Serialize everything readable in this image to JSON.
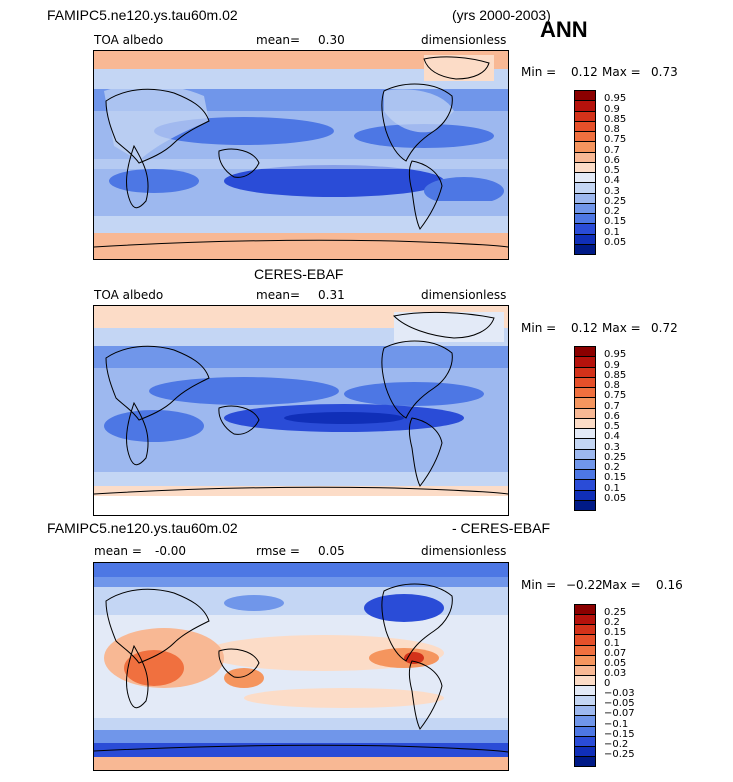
{
  "header": {
    "title": "FAMIPC5.ne120.ys.tau60m.02",
    "years": "(yrs 2000-2003)",
    "season": "ANN"
  },
  "panels": [
    {
      "title": "",
      "field": "TOA albedo",
      "mean_label": "mean=",
      "mean_value": "0.30",
      "units": "dimensionless",
      "min_label": "Min =",
      "min_value": "0.12",
      "max_label": "Max =",
      "max_value": "0.73",
      "colorbar": {
        "labels": [
          "0.95",
          "0.9",
          "0.85",
          "0.8",
          "0.75",
          "0.7",
          "0.6",
          "0.5",
          "0.4",
          "0.3",
          "0.25",
          "0.2",
          "0.15",
          "0.1",
          "0.05"
        ],
        "colors": [
          "#8b0000",
          "#b5120c",
          "#d3321a",
          "#e6502a",
          "#f0703f",
          "#f5955e",
          "#f8b894",
          "#fcdcc7",
          "#e3eaf7",
          "#c4d6f4",
          "#9db8ef",
          "#7096ea",
          "#4d77e4",
          "#2a4cd7",
          "#102fb8",
          "#001a87"
        ]
      }
    },
    {
      "title": "CERES-EBAF",
      "field": "TOA albedo",
      "mean_label": "mean=",
      "mean_value": "0.31",
      "units": "dimensionless",
      "min_label": "Min =",
      "min_value": "0.12",
      "max_label": "Max =",
      "max_value": "0.72",
      "colorbar": {
        "labels": [
          "0.95",
          "0.9",
          "0.85",
          "0.8",
          "0.75",
          "0.7",
          "0.6",
          "0.5",
          "0.4",
          "0.3",
          "0.25",
          "0.2",
          "0.15",
          "0.1",
          "0.05"
        ],
        "colors": [
          "#8b0000",
          "#b5120c",
          "#d3321a",
          "#e6502a",
          "#f0703f",
          "#f5955e",
          "#f8b894",
          "#fcdcc7",
          "#e3eaf7",
          "#c4d6f4",
          "#9db8ef",
          "#7096ea",
          "#4d77e4",
          "#2a4cd7",
          "#102fb8",
          "#001a87"
        ]
      }
    },
    {
      "title_left": "FAMIPC5.ne120.ys.tau60m.02",
      "title_right": "- CERES-EBAF",
      "mean_label": "mean =",
      "mean_value": "-0.00",
      "rmse_label": "rmse =",
      "rmse_value": "0.05",
      "units": "dimensionless",
      "min_label": "Min =",
      "min_value": "−0.22",
      "max_label": "Max =",
      "max_value": "0.16",
      "colorbar": {
        "labels": [
          "0.25",
          "0.2",
          "0.15",
          "0.1",
          "0.07",
          "0.05",
          "0.03",
          "0",
          "−0.03",
          "−0.05",
          "−0.07",
          "−0.1",
          "−0.15",
          "−0.2",
          "−0.25"
        ],
        "colors": [
          "#8b0000",
          "#b5120c",
          "#d3321a",
          "#e6502a",
          "#f0703f",
          "#f5955e",
          "#f8b894",
          "#fcdcc7",
          "#e3eaf7",
          "#c4d6f4",
          "#9db8ef",
          "#7096ea",
          "#4d77e4",
          "#2a4cd7",
          "#102fb8",
          "#001a87"
        ]
      }
    }
  ]
}
